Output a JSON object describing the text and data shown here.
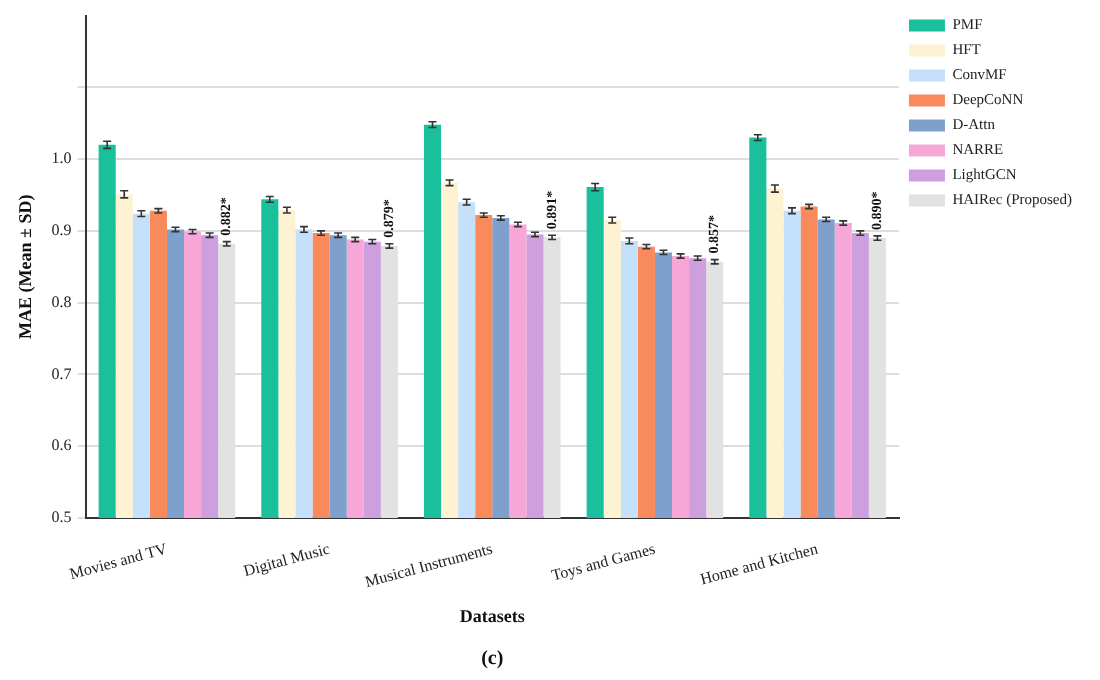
{
  "chart_data": {
    "type": "bar",
    "xlabel": "Datasets",
    "ylabel": "MAE (Mean ± SD)",
    "categories": [
      "Movies and TV",
      "Digital Music",
      "Musical Instruments",
      "Toys and Games",
      "Home and Kitchen"
    ],
    "series": [
      {
        "name": "PMF",
        "color": "#1abf9c",
        "values": [
          1.02,
          0.944,
          1.048,
          0.961,
          1.03
        ],
        "errors": [
          0.005,
          0.004,
          0.004,
          0.005,
          0.004
        ]
      },
      {
        "name": "HFT",
        "color": "#fdf3d3",
        "values": [
          0.951,
          0.929,
          0.967,
          0.915,
          0.959
        ],
        "errors": [
          0.005,
          0.004,
          0.004,
          0.004,
          0.005
        ]
      },
      {
        "name": "ConvMF",
        "color": "#c4e0fa",
        "values": [
          0.924,
          0.902,
          0.94,
          0.886,
          0.928
        ],
        "errors": [
          0.004,
          0.004,
          0.004,
          0.004,
          0.004
        ]
      },
      {
        "name": "DeepCoNN",
        "color": "#f98a5c",
        "values": [
          0.928,
          0.897,
          0.922,
          0.878,
          0.934
        ],
        "errors": [
          0.003,
          0.003,
          0.003,
          0.003,
          0.003
        ]
      },
      {
        "name": "D-Attn",
        "color": "#7f9fcd",
        "values": [
          0.902,
          0.894,
          0.918,
          0.87,
          0.916
        ],
        "errors": [
          0.003,
          0.003,
          0.003,
          0.003,
          0.003
        ]
      },
      {
        "name": "NARRE",
        "color": "#f7a6d8",
        "values": [
          0.899,
          0.888,
          0.909,
          0.865,
          0.911
        ],
        "errors": [
          0.003,
          0.003,
          0.003,
          0.003,
          0.003
        ]
      },
      {
        "name": "LightGCN",
        "color": "#cd9fdd",
        "values": [
          0.894,
          0.885,
          0.895,
          0.862,
          0.897
        ],
        "errors": [
          0.003,
          0.003,
          0.003,
          0.003,
          0.003
        ]
      },
      {
        "name": "HAIRec (Proposed)",
        "color": "#e2e2e2",
        "values": [
          0.882,
          0.879,
          0.891,
          0.857,
          0.89
        ],
        "errors": [
          0.003,
          0.003,
          0.003,
          0.003,
          0.003
        ],
        "value_labels": [
          "0.882*",
          "0.879*",
          "0.891*",
          "0.857*",
          "0.890*"
        ]
      }
    ],
    "ylim": [
      0.5,
      1.2
    ],
    "yticks": [
      0.5,
      0.6,
      0.7,
      0.8,
      0.9,
      {
        "value": 1.0,
        "label": "1.0"
      },
      {
        "value": 1.1,
        "label": null
      }
    ],
    "grid": "y",
    "legend": "top right",
    "annotations": [
      "(c)"
    ]
  }
}
